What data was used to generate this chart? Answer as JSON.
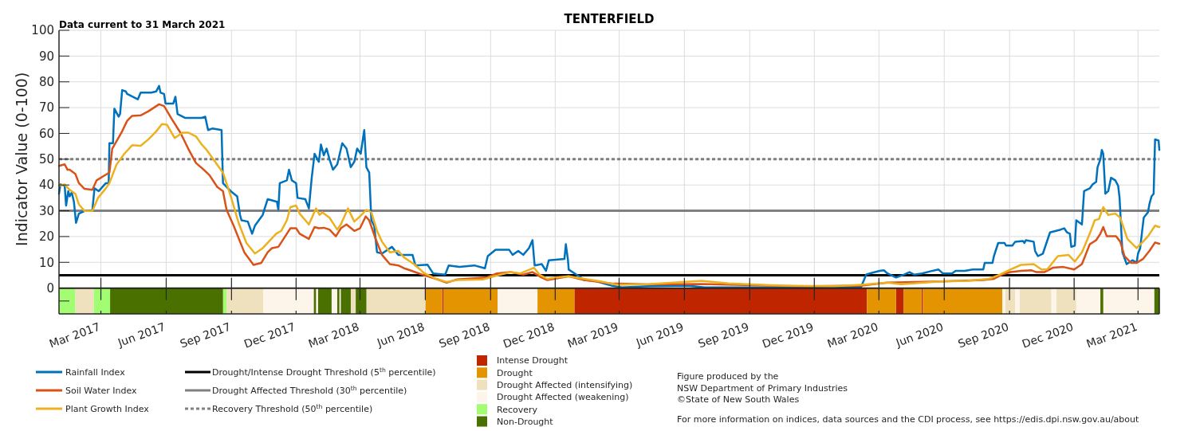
{
  "chart_data": {
    "type": "line",
    "title": "TENTERFIELD",
    "ylabel": "Indicator Value (0-100)",
    "annotations": [
      "Data current to 31 March 2021",
      "Figure produced by the",
      "NSW Department of Primary Industries",
      "©State of New South Wales",
      "For more information on indices, data sources and the CDI process, see https://edis.dpi.nsw.gov.au/about"
    ],
    "xlim": [
      "2017-01-01",
      "2021-03-31"
    ],
    "xticks": [
      {
        "value": "2017-03-01",
        "label": "Mar 2017"
      },
      {
        "value": "2017-06-01",
        "label": "Jun 2017"
      },
      {
        "value": "2017-09-01",
        "label": "Sep 2017"
      },
      {
        "value": "2017-12-01",
        "label": "Dec 2017"
      },
      {
        "value": "2018-03-01",
        "label": "Mar 2018"
      },
      {
        "value": "2018-06-01",
        "label": "Jun 2018"
      },
      {
        "value": "2018-09-01",
        "label": "Sep 2018"
      },
      {
        "value": "2018-12-01",
        "label": "Dec 2018"
      },
      {
        "value": "2019-03-01",
        "label": "Mar 2019"
      },
      {
        "value": "2019-06-01",
        "label": "Jun 2019"
      },
      {
        "value": "2019-09-01",
        "label": "Sep 2019"
      },
      {
        "value": "2019-12-01",
        "label": "Dec 2019"
      },
      {
        "value": "2020-03-01",
        "label": "Mar 2020"
      },
      {
        "value": "2020-06-01",
        "label": "Jun 2020"
      },
      {
        "value": "2020-09-01",
        "label": "Sep 2020"
      },
      {
        "value": "2020-12-01",
        "label": "Dec 2020"
      },
      {
        "value": "2021-03-01",
        "label": "Mar 2021"
      }
    ],
    "ylim": [
      -10,
      100
    ],
    "yticks": [
      {
        "value": -5,
        "label": null
      },
      0,
      10,
      20,
      30,
      40,
      50,
      60,
      70,
      80,
      90,
      100
    ],
    "grid": true,
    "legend": "bottom",
    "series": [
      {
        "name": "Rainfall Index",
        "color": "#0072bd",
        "x": [
          "2017-01-01",
          "2017-01-03",
          "2017-01-09",
          "2017-01-11",
          "2017-01-14",
          "2017-01-16",
          "2017-01-19",
          "2017-01-22",
          "2017-01-25",
          "2017-01-29",
          "2017-02-06",
          "2017-02-17",
          "2017-02-20",
          "2017-02-26",
          "2017-03-08",
          "2017-03-12",
          "2017-03-13",
          "2017-03-18",
          "2017-03-20",
          "2017-03-26",
          "2017-03-28",
          "2017-03-31",
          "2017-04-05",
          "2017-04-07",
          "2017-04-22",
          "2017-04-26",
          "2017-05-11",
          "2017-05-18",
          "2017-05-22",
          "2017-05-24",
          "2017-05-29",
          "2017-05-31",
          "2017-06-11",
          "2017-06-14",
          "2017-06-17",
          "2017-06-28",
          "2017-07-21",
          "2017-07-26",
          "2017-07-30",
          "2017-08-05",
          "2017-08-18",
          "2017-08-20",
          "2017-08-27",
          "2017-08-31",
          "2017-09-09",
          "2017-09-13",
          "2017-09-15",
          "2017-09-24",
          "2017-09-30",
          "2017-10-04",
          "2017-10-15",
          "2017-10-19",
          "2017-10-22",
          "2017-11-04",
          "2017-11-06",
          "2017-11-08",
          "2017-11-18",
          "2017-11-21",
          "2017-11-25",
          "2017-12-01",
          "2017-12-03",
          "2017-12-14",
          "2017-12-19",
          "2017-12-23",
          "2017-12-27",
          "2018-01-02",
          "2018-01-05",
          "2018-01-09",
          "2018-01-13",
          "2018-01-17",
          "2018-01-22",
          "2018-01-28",
          "2018-02-04",
          "2018-02-10",
          "2018-02-16",
          "2018-02-21",
          "2018-02-25",
          "2018-03-02",
          "2018-03-07",
          "2018-03-10",
          "2018-03-14",
          "2018-03-17",
          "2018-03-21",
          "2018-03-25",
          "2018-04-01",
          "2018-04-15",
          "2018-04-24",
          "2018-05-14",
          "2018-05-18",
          "2018-06-04",
          "2018-06-12",
          "2018-06-29",
          "2018-07-04",
          "2018-07-19",
          "2018-08-09",
          "2018-08-24",
          "2018-08-28",
          "2018-09-08",
          "2018-09-27",
          "2018-10-02",
          "2018-10-10",
          "2018-10-17",
          "2018-10-25",
          "2018-10-30",
          "2018-11-02",
          "2018-11-12",
          "2018-11-18",
          "2018-11-22",
          "2018-12-14",
          "2018-12-16",
          "2018-12-19",
          "2018-12-20",
          "2018-12-31",
          "2019-01-11",
          "2019-01-26",
          "2019-02-18",
          "2019-03-05",
          "2019-04-11",
          "2019-06-06",
          "2019-06-29",
          "2019-08-02",
          "2019-11-07",
          "2020-02-05",
          "2020-02-12",
          "2020-02-20",
          "2020-03-02",
          "2020-03-08",
          "2020-03-13",
          "2020-03-25",
          "2020-04-05",
          "2020-04-13",
          "2020-04-20",
          "2020-05-01",
          "2020-05-12",
          "2020-05-24",
          "2020-05-30",
          "2020-06-12",
          "2020-06-17",
          "2020-06-30",
          "2020-07-11",
          "2020-07-26",
          "2020-07-28",
          "2020-08-08",
          "2020-08-10",
          "2020-08-16",
          "2020-08-25",
          "2020-08-27",
          "2020-09-05",
          "2020-09-09",
          "2020-09-20",
          "2020-09-22",
          "2020-09-24",
          "2020-10-05",
          "2020-10-07",
          "2020-10-11",
          "2020-10-18",
          "2020-10-28",
          "2020-11-12",
          "2020-11-17",
          "2020-11-21",
          "2020-11-25",
          "2020-11-27",
          "2020-12-02",
          "2020-12-04",
          "2020-12-12",
          "2020-12-15",
          "2020-12-23",
          "2020-12-27",
          "2021-01-01",
          "2021-01-03",
          "2021-01-07",
          "2021-01-09",
          "2021-01-11",
          "2021-01-14",
          "2021-01-18",
          "2021-01-22",
          "2021-01-28",
          "2021-02-01",
          "2021-02-03",
          "2021-02-07",
          "2021-02-13",
          "2021-02-21",
          "2021-02-27",
          "2021-03-01",
          "2021-03-04",
          "2021-03-09",
          "2021-03-15",
          "2021-03-17",
          "2021-03-20",
          "2021-03-23",
          "2021-03-25",
          "2021-03-30",
          "2021-03-31"
        ],
        "values": [
          36.6,
          40.2,
          39.7,
          32,
          37.6,
          35.6,
          37.1,
          33.5,
          25.3,
          28.9,
          29.9,
          30.2,
          38.7,
          37.6,
          40.7,
          40.7,
          56.2,
          56.2,
          69.6,
          66.5,
          67.5,
          76.8,
          76.3,
          75.3,
          73.2,
          75.8,
          75.8,
          76.3,
          78.4,
          75.8,
          75.3,
          71.6,
          71.6,
          74.2,
          67.5,
          66,
          66,
          66.5,
          61.3,
          61.9,
          61.3,
          40.7,
          38.7,
          37.6,
          35.6,
          28.4,
          26.3,
          25.8,
          21.1,
          24.2,
          28.4,
          32,
          34.5,
          33.5,
          30.4,
          40.7,
          41.8,
          45.9,
          41.8,
          40.7,
          35,
          34.5,
          30.9,
          42.8,
          52.1,
          49,
          55.7,
          51.5,
          54.1,
          50,
          45.9,
          48,
          56.2,
          54.1,
          46.9,
          49,
          54.1,
          52.1,
          61.3,
          46.9,
          44.8,
          26.3,
          24.2,
          13.9,
          13.4,
          16,
          12.9,
          12.9,
          8.8,
          9.1,
          5.7,
          5.2,
          8.8,
          8.2,
          8.8,
          7.7,
          12.4,
          14.9,
          14.9,
          12.9,
          14.4,
          12.9,
          15.5,
          18.6,
          8.8,
          9.3,
          6.7,
          10.8,
          11.3,
          17,
          10.8,
          7.2,
          5.2,
          3.1,
          2.8,
          1,
          0.3,
          0.7,
          1,
          0.3,
          0.3,
          0.3,
          0.5,
          5.2,
          5.9,
          6.7,
          6.9,
          5.7,
          4.1,
          5.2,
          6.2,
          5.2,
          5.7,
          6.5,
          7.2,
          5.7,
          5.7,
          6.7,
          6.7,
          7.2,
          7.2,
          9.8,
          9.8,
          12.4,
          17.5,
          17.5,
          16.5,
          16.5,
          18,
          18.3,
          17.5,
          18.6,
          18,
          14.4,
          12.4,
          13.4,
          21.6,
          22.7,
          23.2,
          21.6,
          21.1,
          16,
          16.5,
          26.3,
          24.7,
          37.6,
          38.7,
          40.2,
          41.2,
          46.9,
          50,
          53.6,
          52.1,
          36.6,
          37.6,
          42.8,
          41.8,
          39.7,
          35,
          13.9,
          9.3,
          10.8,
          9.8,
          13.4,
          15.5,
          27.3,
          29.4,
          32.5,
          35.6,
          36.6,
          57.7,
          57.2,
          53.6
        ]
      },
      {
        "name": "Soil Water Index",
        "color": "#d95319",
        "x": [
          "2017-01-01",
          "2017-01-09",
          "2017-01-13",
          "2017-01-16",
          "2017-01-24",
          "2017-01-29",
          "2017-02-06",
          "2017-02-17",
          "2017-02-23",
          "2017-03-08",
          "2017-03-13",
          "2017-03-17",
          "2017-03-30",
          "2017-04-07",
          "2017-04-14",
          "2017-04-26",
          "2017-05-07",
          "2017-05-22",
          "2017-05-29",
          "2017-06-09",
          "2017-06-21",
          "2017-07-02",
          "2017-07-13",
          "2017-07-24",
          "2017-08-01",
          "2017-08-12",
          "2017-08-20",
          "2017-08-25",
          "2017-09-04",
          "2017-09-19",
          "2017-10-02",
          "2017-10-13",
          "2017-10-22",
          "2017-10-28",
          "2017-11-06",
          "2017-11-18",
          "2017-11-23",
          "2017-12-01",
          "2017-12-06",
          "2017-12-19",
          "2017-12-27",
          "2018-01-02",
          "2018-01-09",
          "2018-01-17",
          "2018-01-26",
          "2018-02-02",
          "2018-02-10",
          "2018-02-21",
          "2018-03-01",
          "2018-03-09",
          "2018-03-14",
          "2018-03-23",
          "2018-04-01",
          "2018-04-12",
          "2018-04-24",
          "2018-05-02",
          "2018-05-13",
          "2018-05-28",
          "2018-06-16",
          "2018-07-01",
          "2018-07-16",
          "2018-08-26",
          "2018-09-10",
          "2018-09-29",
          "2018-10-17",
          "2018-10-30",
          "2018-11-12",
          "2018-11-20",
          "2018-12-20",
          "2019-01-11",
          "2019-02-18",
          "2019-04-11",
          "2019-06-25",
          "2019-11-07",
          "2020-02-05",
          "2020-03-13",
          "2020-05-28",
          "2020-07-26",
          "2020-08-10",
          "2020-08-21",
          "2020-09-02",
          "2020-09-17",
          "2020-10-02",
          "2020-10-09",
          "2020-10-20",
          "2020-11-01",
          "2020-11-16",
          "2020-12-01",
          "2020-12-12",
          "2020-12-23",
          "2021-01-01",
          "2021-01-07",
          "2021-01-11",
          "2021-01-16",
          "2021-01-29",
          "2021-02-04",
          "2021-02-10",
          "2021-02-19",
          "2021-02-27",
          "2021-03-08",
          "2021-03-17",
          "2021-03-25",
          "2021-03-31"
        ],
        "values": [
          47.4,
          48,
          45.9,
          45.9,
          44.3,
          40.7,
          38.5,
          38.1,
          41.8,
          44,
          44.8,
          54.1,
          60.3,
          64.9,
          66.8,
          67,
          68.6,
          71.3,
          70.6,
          65.5,
          60.3,
          54.1,
          48.5,
          45.9,
          43.8,
          39.2,
          37.6,
          30.4,
          24.2,
          13.9,
          9,
          9.8,
          13.9,
          15.5,
          16,
          21.1,
          23.2,
          23.2,
          21.1,
          19.1,
          23.7,
          23.2,
          23.4,
          22.7,
          20.1,
          23.2,
          24.7,
          22.2,
          23.2,
          27.8,
          26.3,
          19.1,
          12.9,
          9.3,
          8.8,
          7.7,
          6.7,
          5.2,
          3.6,
          2.1,
          3.4,
          4.1,
          5.7,
          6.2,
          5.2,
          6.2,
          4.1,
          3.1,
          4.6,
          3.1,
          1.8,
          1.4,
          1.6,
          0.7,
          1,
          2.1,
          2.6,
          3.1,
          3.6,
          5.2,
          6.2,
          6.7,
          6.9,
          6.2,
          6.2,
          7.9,
          8.2,
          7.2,
          9.3,
          17,
          18.6,
          21.1,
          23.7,
          20.1,
          20.1,
          18,
          12.4,
          9.8,
          9.8,
          11.3,
          14.4,
          17.7,
          17.2
        ]
      },
      {
        "name": "Plant Growth Index",
        "color": "#edb120",
        "x": [
          "2017-01-01",
          "2017-01-09",
          "2017-01-16",
          "2017-01-24",
          "2017-01-29",
          "2017-02-06",
          "2017-02-17",
          "2017-02-25",
          "2017-03-08",
          "2017-03-13",
          "2017-03-23",
          "2017-04-03",
          "2017-04-14",
          "2017-04-26",
          "2017-05-07",
          "2017-05-18",
          "2017-05-26",
          "2017-06-02",
          "2017-06-13",
          "2017-06-24",
          "2017-07-02",
          "2017-07-13",
          "2017-07-21",
          "2017-07-28",
          "2017-08-05",
          "2017-08-20",
          "2017-08-31",
          "2017-09-11",
          "2017-09-22",
          "2017-10-04",
          "2017-10-15",
          "2017-11-03",
          "2017-11-10",
          "2017-11-18",
          "2017-11-23",
          "2017-12-01",
          "2017-12-06",
          "2017-12-19",
          "2017-12-29",
          "2018-01-03",
          "2018-01-07",
          "2018-01-17",
          "2018-01-28",
          "2018-02-02",
          "2018-02-12",
          "2018-02-21",
          "2018-03-01",
          "2018-03-10",
          "2018-03-17",
          "2018-03-25",
          "2018-04-01",
          "2018-04-12",
          "2018-04-24",
          "2018-05-02",
          "2018-05-16",
          "2018-05-31",
          "2018-06-16",
          "2018-07-01",
          "2018-07-16",
          "2018-08-22",
          "2018-09-06",
          "2018-09-29",
          "2018-10-13",
          "2018-11-01",
          "2018-11-09",
          "2018-11-20",
          "2018-12-01",
          "2018-12-20",
          "2019-01-11",
          "2019-02-03",
          "2019-02-26",
          "2019-04-11",
          "2019-06-25",
          "2019-08-02",
          "2019-10-15",
          "2019-12-29",
          "2020-02-05",
          "2020-03-13",
          "2020-04-01",
          "2020-05-28",
          "2020-07-04",
          "2020-08-03",
          "2020-08-18",
          "2020-09-02",
          "2020-09-17",
          "2020-10-05",
          "2020-10-16",
          "2020-10-24",
          "2020-11-08",
          "2020-11-23",
          "2020-12-02",
          "2020-12-12",
          "2020-12-23",
          "2020-12-30",
          "2021-01-05",
          "2021-01-11",
          "2021-01-18",
          "2021-01-28",
          "2021-02-04",
          "2021-02-14",
          "2021-02-27",
          "2021-03-08",
          "2021-03-15",
          "2021-03-25",
          "2021-03-31"
        ],
        "values": [
          39.7,
          40.2,
          38.1,
          36.6,
          32.5,
          29.9,
          29.9,
          35,
          38.7,
          40.7,
          47.9,
          52.1,
          55.4,
          55.2,
          57.7,
          60.8,
          63.6,
          63.4,
          58.2,
          60.3,
          60.3,
          58.8,
          55.7,
          53.6,
          50.5,
          44.8,
          35.6,
          25.3,
          17.5,
          13.4,
          15.5,
          21.1,
          22.2,
          26.3,
          31.4,
          32,
          28.9,
          24.7,
          30.9,
          28.4,
          29.4,
          27.3,
          22.7,
          24.7,
          30.9,
          25.8,
          27.8,
          30.4,
          29.4,
          22.2,
          18,
          13.9,
          14.4,
          11.9,
          9.3,
          5.7,
          3.6,
          2.4,
          3.1,
          3.4,
          4.6,
          6.2,
          5.7,
          7.9,
          5.2,
          3.6,
          4.1,
          4.6,
          3.6,
          2.6,
          1.3,
          1.5,
          2.8,
          1.8,
          1,
          0.7,
          1.3,
          2.1,
          1.5,
          2.6,
          2.8,
          3.6,
          5.2,
          7.2,
          9,
          9.3,
          7.2,
          7.2,
          12.4,
          12.9,
          10.3,
          13.9,
          21.1,
          26.3,
          26.8,
          31.4,
          28.4,
          28.9,
          27.3,
          19.1,
          15.5,
          18,
          20.1,
          24.2,
          23.7
        ]
      }
    ],
    "ref_lines": [
      {
        "axis": "y",
        "value": 5,
        "label": "Drought/Intense Drought Threshold (5$^{th}$ percentile)",
        "color": "#000000",
        "line_style": "solid"
      },
      {
        "axis": "y",
        "value": 30,
        "label": "Drought Affected Threshold (30$^{th}$ percentile)",
        "color": "#808080",
        "line_style": "solid"
      },
      {
        "axis": "y",
        "value": 50,
        "label": "Recovery Threshold (50$^{th}$ percentile)",
        "color": "#808080",
        "line_style": "dotted"
      }
    ],
    "bands": [
      {
        "axis": "x",
        "from": "2018-06-25",
        "to": "2018-06-27",
        "label": "Intense Drought",
        "color": "#bf2600"
      },
      {
        "axis": "x",
        "from": "2018-12-28",
        "to": "2020-02-13",
        "color": "#bf2600"
      },
      {
        "axis": "x",
        "from": "2020-03-25",
        "to": "2020-04-05",
        "color": "#bf2600"
      },
      {
        "axis": "x",
        "from": "2020-04-30",
        "to": "2020-05-02",
        "color": "#bf2600"
      },
      {
        "axis": "x",
        "from": "2018-06-01",
        "to": "2018-06-25",
        "label": "Drought",
        "color": "#e39400"
      },
      {
        "axis": "x",
        "from": "2018-06-27",
        "to": "2018-09-11",
        "color": "#e39400"
      },
      {
        "axis": "x",
        "from": "2018-11-06",
        "to": "2018-12-28",
        "color": "#e39400"
      },
      {
        "axis": "x",
        "from": "2020-02-13",
        "to": "2020-03-25",
        "color": "#e39400"
      },
      {
        "axis": "x",
        "from": "2020-04-05",
        "to": "2020-04-30",
        "color": "#e39400"
      },
      {
        "axis": "x",
        "from": "2020-05-02",
        "to": "2020-08-22",
        "color": "#e39400"
      },
      {
        "axis": "x",
        "from": "2017-01-24",
        "to": "2017-02-19",
        "label": "Drought Affected (intensifying)",
        "color": "#efe1bd"
      },
      {
        "axis": "x",
        "from": "2017-08-25",
        "to": "2017-10-16",
        "color": "#efe1bd"
      },
      {
        "axis": "x",
        "from": "2018-02-16",
        "to": "2018-02-23",
        "color": "#efe1bd"
      },
      {
        "axis": "x",
        "from": "2018-03-10",
        "to": "2018-06-01",
        "color": "#efe1bd"
      },
      {
        "axis": "x",
        "from": "2020-08-26",
        "to": "2020-09-09",
        "color": "#efe1bd"
      },
      {
        "axis": "x",
        "from": "2020-09-15",
        "to": "2020-10-30",
        "color": "#efe1bd"
      },
      {
        "axis": "x",
        "from": "2020-11-06",
        "to": "2020-12-04",
        "color": "#efe1bd"
      },
      {
        "axis": "x",
        "from": "2017-10-16",
        "to": "2017-12-26",
        "label": "Drought Affected (weakening)",
        "color": "#fdf5ea"
      },
      {
        "axis": "x",
        "from": "2017-12-29",
        "to": "2018-01-01",
        "color": "#fdf5ea"
      },
      {
        "axis": "x",
        "from": "2018-01-20",
        "to": "2018-01-28",
        "color": "#fdf5ea"
      },
      {
        "axis": "x",
        "from": "2018-01-31",
        "to": "2018-02-02",
        "color": "#fdf5ea"
      },
      {
        "axis": "x",
        "from": "2018-09-11",
        "to": "2018-11-06",
        "color": "#fdf5ea"
      },
      {
        "axis": "x",
        "from": "2020-08-22",
        "to": "2020-08-26",
        "color": "#fdf5ea"
      },
      {
        "axis": "x",
        "from": "2020-09-09",
        "to": "2020-09-15",
        "color": "#fdf5ea"
      },
      {
        "axis": "x",
        "from": "2020-10-30",
        "to": "2020-11-06",
        "color": "#fdf5ea"
      },
      {
        "axis": "x",
        "from": "2020-12-04",
        "to": "2021-01-07",
        "color": "#fdf5ea"
      },
      {
        "axis": "x",
        "from": "2021-01-11",
        "to": "2021-03-24",
        "color": "#fdf5ea"
      },
      {
        "axis": "x",
        "from": "2017-01-01",
        "to": "2017-01-24",
        "label": "Recovery",
        "color": "#a3fd72"
      },
      {
        "axis": "x",
        "from": "2017-02-19",
        "to": "2017-03-14",
        "color": "#a3fd72"
      },
      {
        "axis": "x",
        "from": "2017-08-20",
        "to": "2017-08-25",
        "color": "#a3fd72"
      },
      {
        "axis": "x",
        "from": "2017-03-14",
        "to": "2017-08-20",
        "label": "Non-Drought",
        "color": "#4a7000"
      },
      {
        "axis": "x",
        "from": "2017-12-26",
        "to": "2017-12-29",
        "color": "#4a7000"
      },
      {
        "axis": "x",
        "from": "2018-01-01",
        "to": "2018-01-20",
        "color": "#4a7000"
      },
      {
        "axis": "x",
        "from": "2018-01-28",
        "to": "2018-01-31",
        "color": "#4a7000"
      },
      {
        "axis": "x",
        "from": "2018-02-02",
        "to": "2018-02-16",
        "color": "#4a7000"
      },
      {
        "axis": "x",
        "from": "2018-02-23",
        "to": "2018-03-10",
        "color": "#4a7000"
      },
      {
        "axis": "x",
        "from": "2021-01-07",
        "to": "2021-01-11",
        "color": "#4a7000"
      },
      {
        "axis": "x",
        "from": "2021-03-24",
        "to": "2021-03-31",
        "color": "#4a7000"
      }
    ]
  }
}
